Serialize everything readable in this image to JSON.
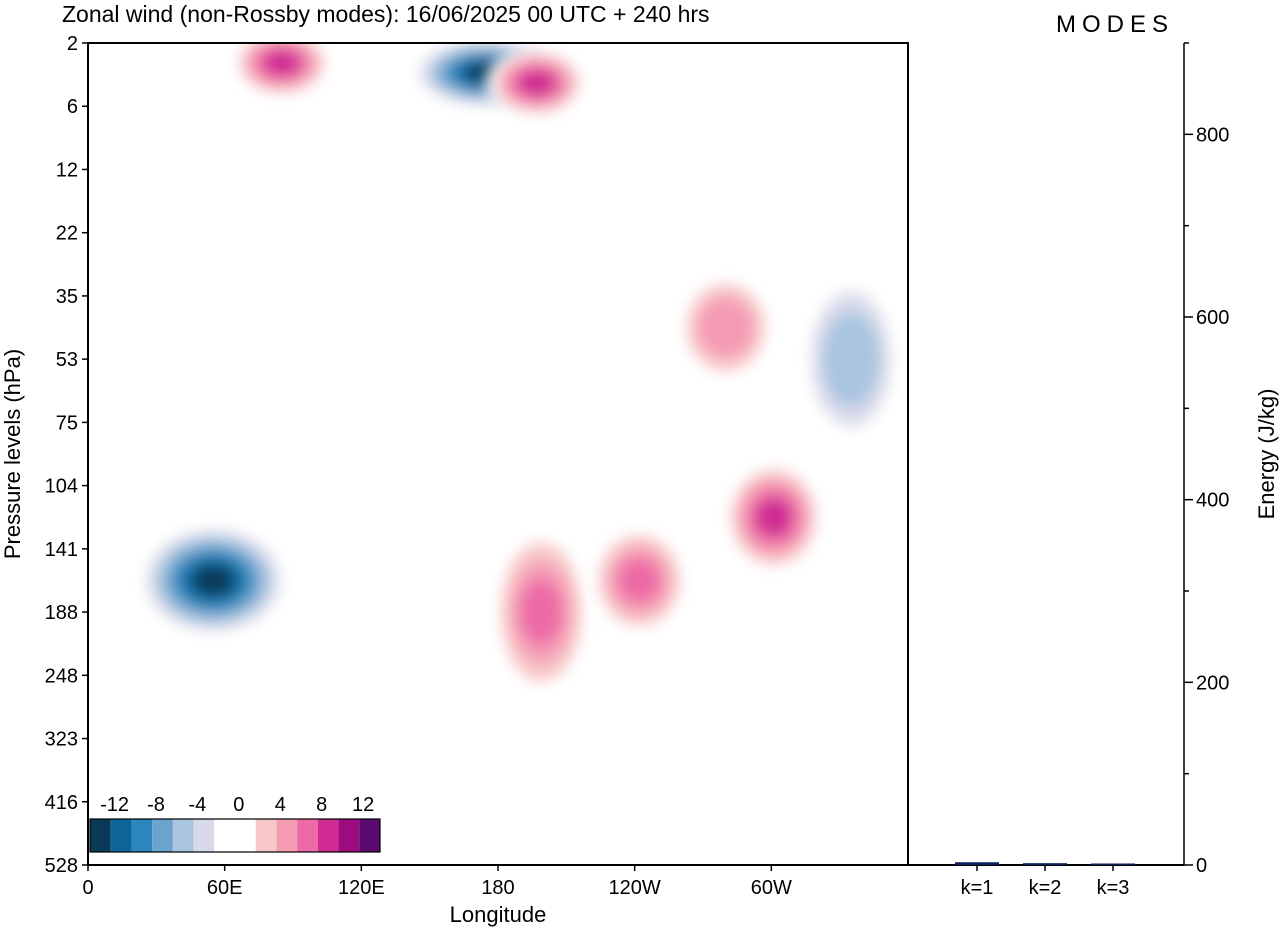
{
  "title": "Zonal wind (non-Rossby modes):  16/06/2025  00 UTC  + 240 hrs",
  "logo_text": "MODES",
  "chart_data": [
    {
      "type": "heatmap",
      "xlabel": "Longitude",
      "ylabel": "Pressure levels (hPa)",
      "x_ticks": [
        "0",
        "60E",
        "120E",
        "180",
        "120W",
        "60W"
      ],
      "y_ticks": [
        "2",
        "6",
        "12",
        "22",
        "35",
        "53",
        "75",
        "104",
        "141",
        "188",
        "248",
        "323",
        "416",
        "528"
      ],
      "colorbar": {
        "labels": [
          "-12",
          "-8",
          "-4",
          "0",
          "4",
          "8",
          "12"
        ],
        "colors": [
          "#0b3a59",
          "#0d6496",
          "#2b86bf",
          "#6aa3cc",
          "#a9c5e0",
          "#d8daea",
          "#ffffff",
          "#ffffff",
          "#f8c8c8",
          "#f59bb5",
          "#ec6aa6",
          "#cf2b93",
          "#9e0d80",
          "#5a0a6e"
        ]
      },
      "features": [
        {
          "sign": "negative",
          "peak": -13,
          "lon": 55,
          "level": "141-188"
        },
        {
          "sign": "negative",
          "peak": -13,
          "lon": 175,
          "level": "4-6"
        },
        {
          "sign": "positive",
          "peak": 9,
          "lon": 197,
          "level": "5-7"
        },
        {
          "sign": "positive",
          "peak": 9,
          "lon": 85,
          "level": "3-5"
        },
        {
          "sign": "positive",
          "peak": 7,
          "lon": 199,
          "level": "141-248"
        },
        {
          "sign": "positive",
          "peak": 7,
          "lon": 242,
          "level": "141-188"
        },
        {
          "sign": "positive",
          "peak": 9,
          "lon": 301,
          "level": "104-141"
        },
        {
          "sign": "positive",
          "peak": 6,
          "lon": 280,
          "level": "35-53"
        },
        {
          "sign": "negative",
          "peak": -6,
          "lon": 335,
          "level": "35-75"
        }
      ]
    },
    {
      "type": "bar",
      "categories": [
        "k=1",
        "k=2",
        "k=3"
      ],
      "values": [
        3,
        2,
        1
      ],
      "ylabel": "Energy (J/kg)",
      "ylim": [
        0,
        900
      ],
      "y_ticks": [
        "0",
        "200",
        "400",
        "600",
        "800"
      ],
      "bar_color": "#0b1f5a"
    }
  ]
}
